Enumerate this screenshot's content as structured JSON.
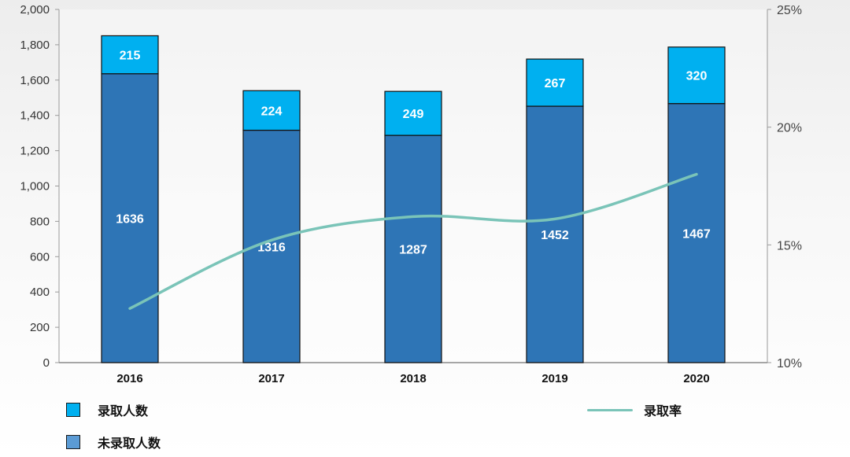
{
  "chart_data": {
    "type": "bar",
    "stacked": true,
    "categories": [
      "2016",
      "2017",
      "2018",
      "2019",
      "2020"
    ],
    "series": [
      {
        "name": "未录取人数",
        "values": [
          1636,
          1316,
          1287,
          1452,
          1467
        ],
        "color": "#2e75b6"
      },
      {
        "name": "录取人数",
        "values": [
          215,
          224,
          249,
          267,
          320
        ],
        "color": "#00b0f0"
      }
    ],
    "line_series": {
      "name": "录取率",
      "values": [
        12.3,
        15.2,
        16.2,
        16.1,
        18.0
      ],
      "color": "#7ac4b8",
      "axis": "right"
    },
    "y_left": {
      "min": 0,
      "max": 2000,
      "ticks": [
        "0",
        "200",
        "400",
        "600",
        "800",
        "1,000",
        "1,200",
        "1,400",
        "1,600",
        "1,800",
        "2,000"
      ]
    },
    "y_right": {
      "min": 10,
      "max": 25,
      "ticks": [
        "10%",
        "15%",
        "20%",
        "25%"
      ]
    },
    "grid": false,
    "legend_position": "bottom"
  },
  "legend": {
    "admitted": "录取人数",
    "not_admitted": "未录取人数",
    "rate": "录取率"
  }
}
